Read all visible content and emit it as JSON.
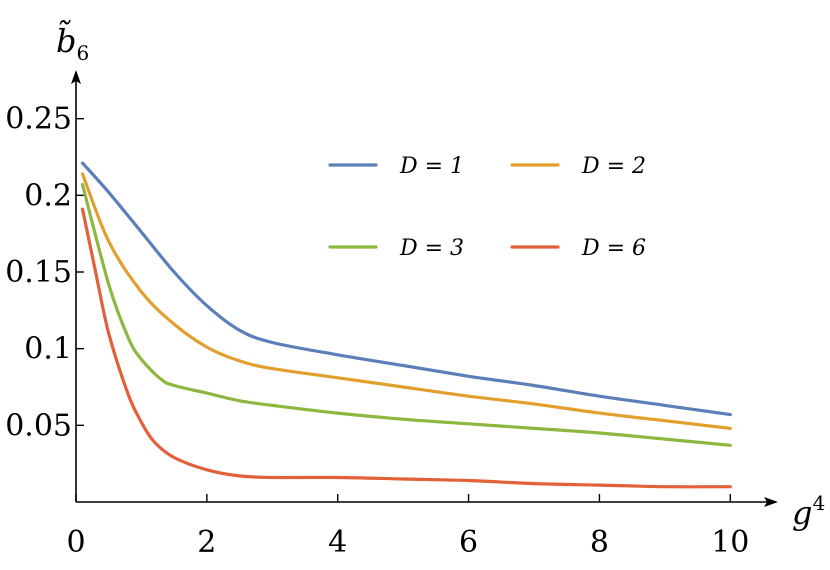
{
  "chart_data": {
    "type": "line",
    "xlabel_base": "g",
    "xlabel_sup": "4",
    "ylabel_base": "b̃",
    "ylabel_sub": "6",
    "xlim": [
      0,
      10.5
    ],
    "ylim": [
      0,
      0.27
    ],
    "xticks": [
      0,
      2,
      4,
      6,
      8,
      10
    ],
    "xtick_labels": [
      "0",
      "2",
      "4",
      "6",
      "8",
      "10"
    ],
    "yticks": [
      0.05,
      0.1,
      0.15,
      0.2,
      0.25
    ],
    "ytick_labels": [
      "0.05",
      "0.1",
      "0.15",
      "0.2",
      "0.25"
    ],
    "legend_position": "top-right",
    "grid": false,
    "series": [
      {
        "name": "D = 1",
        "color": "#5b7fb8",
        "x": [
          0.1,
          0.5,
          1.0,
          1.5,
          2.0,
          2.5,
          3.0,
          4.0,
          5.0,
          6.0,
          7.0,
          8.0,
          9.0,
          10.0
        ],
        "y": [
          0.221,
          0.202,
          0.176,
          0.15,
          0.128,
          0.112,
          0.104,
          0.096,
          0.089,
          0.082,
          0.076,
          0.069,
          0.063,
          0.057
        ]
      },
      {
        "name": "D = 2",
        "color": "#e29f2d",
        "x": [
          0.1,
          0.5,
          1.0,
          1.5,
          2.0,
          2.5,
          3.0,
          4.0,
          5.0,
          6.0,
          7.0,
          8.0,
          9.0,
          10.0
        ],
        "y": [
          0.214,
          0.17,
          0.137,
          0.116,
          0.101,
          0.092,
          0.087,
          0.081,
          0.075,
          0.069,
          0.064,
          0.058,
          0.053,
          0.048
        ]
      },
      {
        "name": "D = 3",
        "color": "#8db73f",
        "x": [
          0.1,
          0.5,
          0.8,
          1.0,
          1.3,
          1.5,
          2.0,
          2.5,
          3.0,
          4.0,
          5.0,
          6.0,
          7.0,
          8.0,
          9.0,
          10.0
        ],
        "y": [
          0.207,
          0.142,
          0.107,
          0.093,
          0.08,
          0.076,
          0.071,
          0.066,
          0.063,
          0.058,
          0.054,
          0.051,
          0.048,
          0.045,
          0.041,
          0.037
        ]
      },
      {
        "name": "D = 6",
        "color": "#e2603a",
        "x": [
          0.1,
          0.3,
          0.5,
          0.8,
          1.0,
          1.2,
          1.5,
          2.0,
          2.5,
          3.0,
          4.0,
          5.0,
          6.0,
          7.0,
          8.0,
          9.0,
          10.0
        ],
        "y": [
          0.191,
          0.15,
          0.11,
          0.07,
          0.052,
          0.039,
          0.029,
          0.021,
          0.017,
          0.016,
          0.016,
          0.015,
          0.014,
          0.012,
          0.011,
          0.01,
          0.01
        ]
      }
    ]
  }
}
